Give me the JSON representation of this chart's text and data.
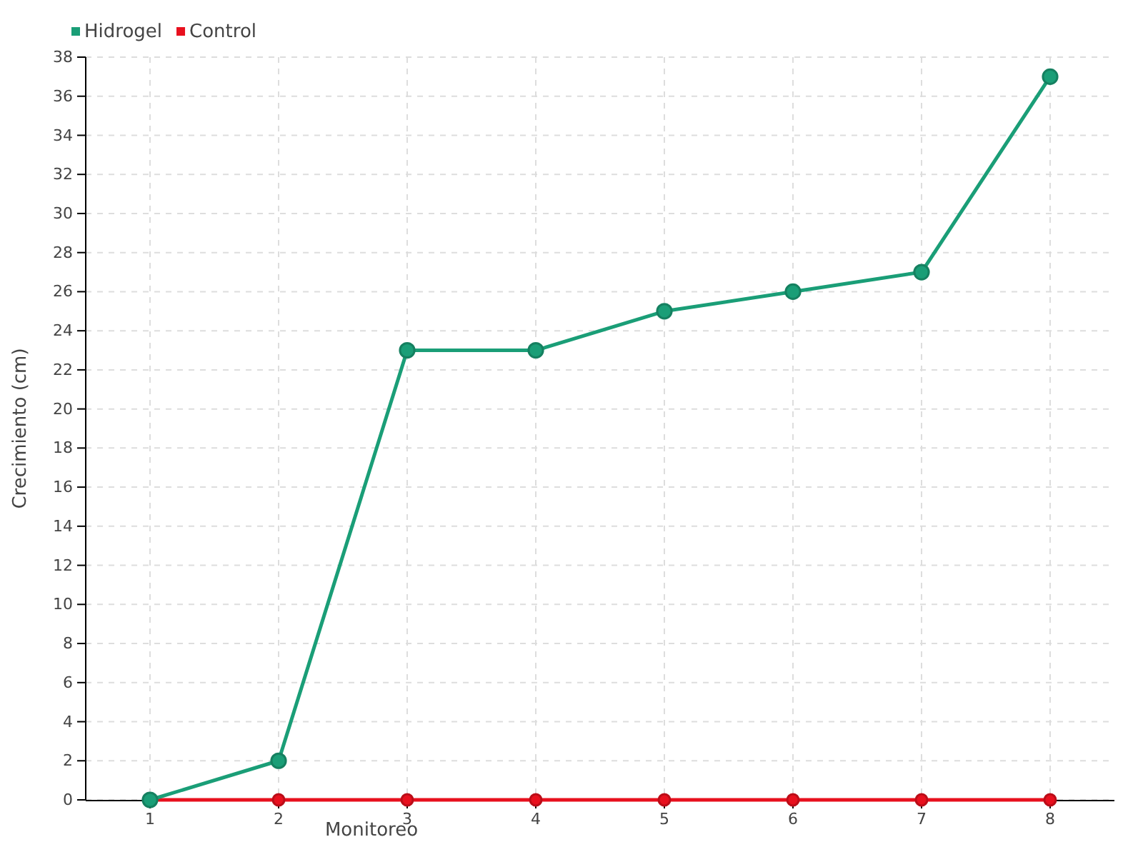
{
  "chart_data": {
    "type": "line",
    "xlabel": "Monitoreo",
    "ylabel": "Crecimiento (cm)",
    "categories": [
      "1",
      "2",
      "3",
      "4",
      "5",
      "6",
      "7",
      "8"
    ],
    "series": [
      {
        "name": "Hidrogel",
        "color": "#1a9e77",
        "values": [
          0,
          2,
          23,
          23,
          25,
          26,
          27,
          37
        ]
      },
      {
        "name": "Control",
        "color": "#e8101e",
        "values": [
          0,
          0,
          0,
          0,
          0,
          0,
          0,
          0
        ]
      }
    ],
    "ylim": [
      0,
      38
    ],
    "yticks": [
      0,
      2,
      4,
      6,
      8,
      10,
      12,
      14,
      16,
      18,
      20,
      22,
      24,
      26,
      28,
      30,
      32,
      34,
      36,
      38
    ],
    "grid": true,
    "legend": "top left",
    "marker": "circle",
    "line_style": "solid"
  }
}
